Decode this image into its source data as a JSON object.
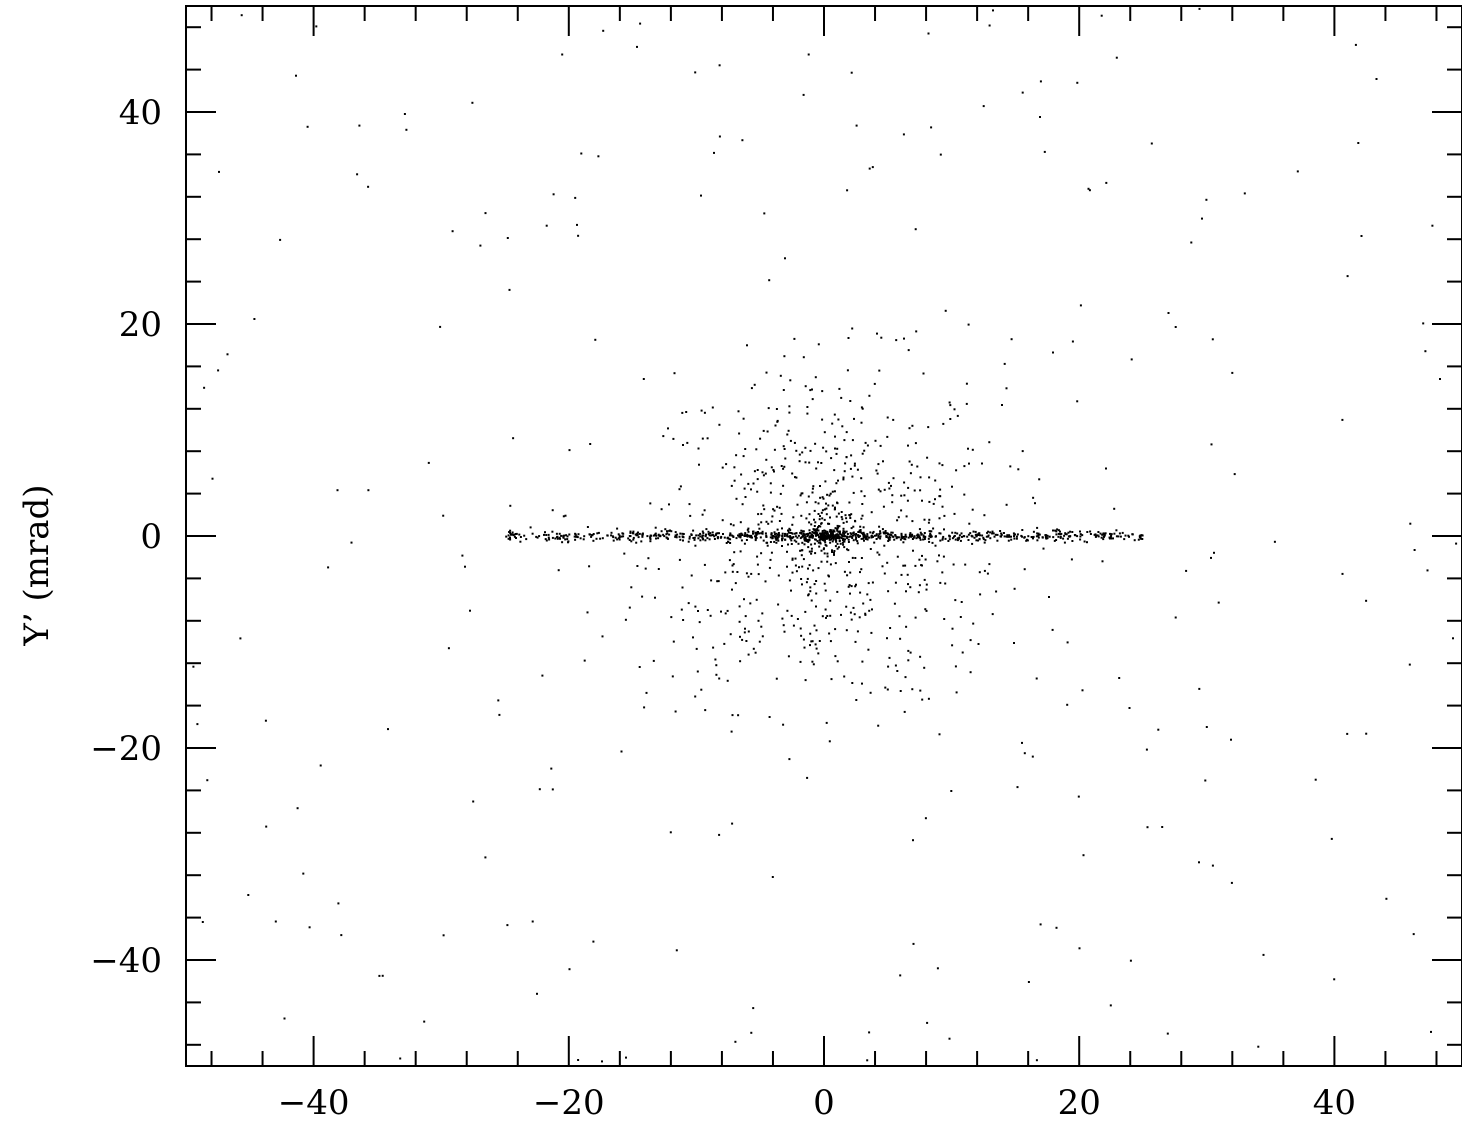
{
  "chart_data": {
    "type": "scatter",
    "title": "",
    "xlabel": "",
    "ylabel": "Y’ (mrad)",
    "xlim": [
      -50,
      50
    ],
    "ylim": [
      -50,
      50
    ],
    "x_ticks": [
      -40,
      -20,
      0,
      20,
      40
    ],
    "y_ticks": [
      -40,
      -20,
      0,
      20,
      40
    ],
    "x_tick_labels": [
      "−40",
      "−20",
      "0",
      "20",
      "40"
    ],
    "y_tick_labels": [
      "−40",
      "−20",
      "0",
      "20",
      "40"
    ],
    "minor_tick_step": 4,
    "grid": false,
    "point_color": "#000000",
    "series": [
      {
        "distribution": [
          {
            "component": "background-halo",
            "count": 260,
            "x_range": [
              -50,
              50
            ],
            "y_range": [
              -50,
              50
            ]
          },
          {
            "component": "central-cloud",
            "count": 700,
            "x_center": 0,
            "y_center": 0,
            "x_sigma": 7,
            "y_sigma": 8
          },
          {
            "component": "horizontal-band",
            "count": 900,
            "x_range": [
              -25,
              25
            ],
            "y_center": 0,
            "y_sigma": 0.25
          },
          {
            "component": "core",
            "count": 120,
            "x_center": 0,
            "y_center": 0,
            "sigma": 1.5
          }
        ]
      }
    ]
  }
}
